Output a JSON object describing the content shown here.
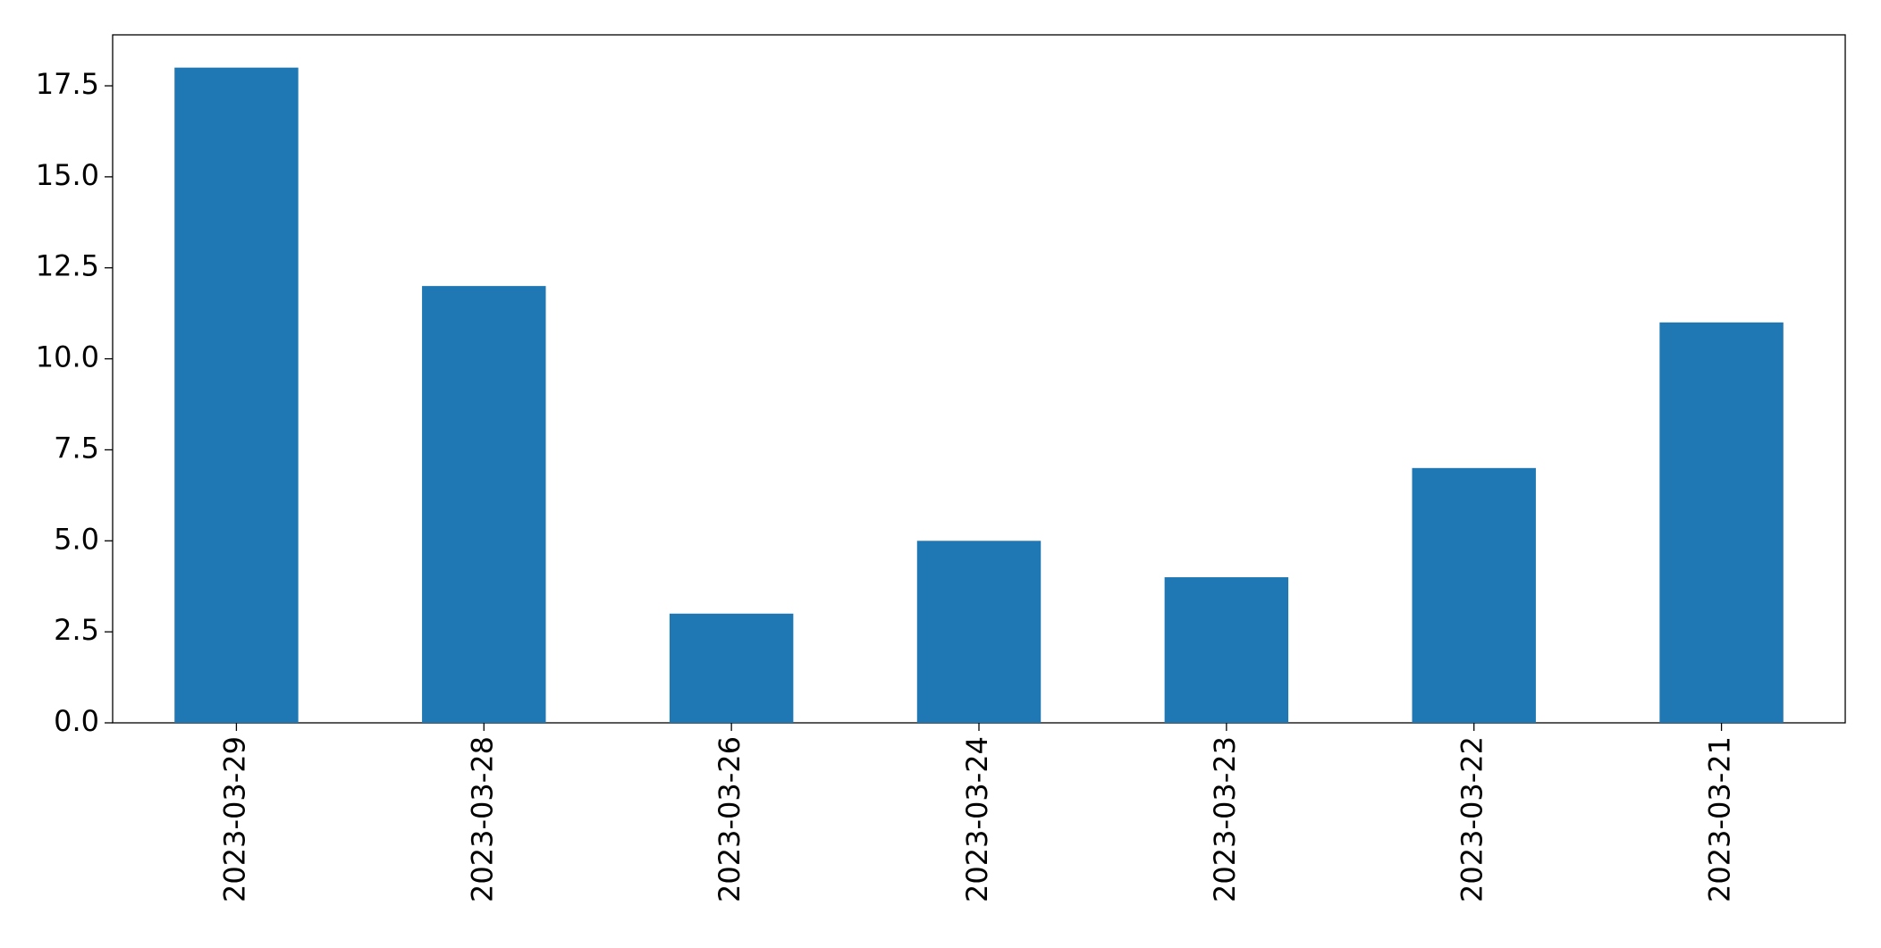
{
  "chart_data": {
    "type": "bar",
    "categories": [
      "2023-03-29",
      "2023-03-28",
      "2023-03-26",
      "2023-03-24",
      "2023-03-23",
      "2023-03-22",
      "2023-03-21"
    ],
    "values": [
      18,
      12,
      3,
      5,
      4,
      7,
      11
    ],
    "color": "#1f77b4",
    "ylim": [
      0,
      18.9
    ],
    "yticks": [
      {
        "value": 0,
        "label": "0.0"
      },
      2.5,
      {
        "value": 5,
        "label": "5.0"
      },
      7.5,
      {
        "value": 10,
        "label": "10.0"
      },
      12.5,
      {
        "value": 15,
        "label": "15.0"
      },
      17.5
    ],
    "grid": false
  }
}
